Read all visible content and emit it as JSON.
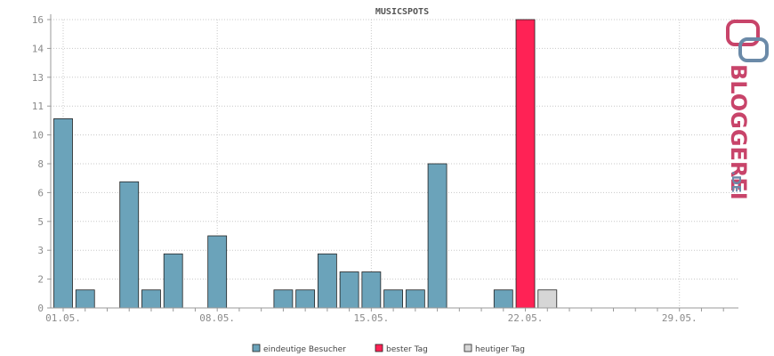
{
  "chart_data": {
    "type": "bar",
    "title": "MUSICSPOTS",
    "xlabel": "",
    "ylabel": "",
    "y_tick_labels": [
      "0",
      "2",
      "3",
      "5",
      "6",
      "8",
      "10",
      "11",
      "13",
      "14",
      "16"
    ],
    "x_tick_labels": [
      "01.05.",
      "08.05.",
      "15.05.",
      "22.05.",
      "29.05."
    ],
    "x_tick_days": [
      1,
      8,
      15,
      22,
      29
    ],
    "ylim": [
      0,
      16
    ],
    "grid": true,
    "legend_position": "bottom",
    "series": [
      {
        "name": "eindeutige Besucher",
        "color": "#6ba3ba",
        "points": [
          {
            "day": 1,
            "value": 10.5
          },
          {
            "day": 2,
            "value": 1
          },
          {
            "day": 4,
            "value": 7
          },
          {
            "day": 5,
            "value": 1
          },
          {
            "day": 6,
            "value": 3
          },
          {
            "day": 8,
            "value": 4
          },
          {
            "day": 11,
            "value": 1
          },
          {
            "day": 12,
            "value": 1
          },
          {
            "day": 13,
            "value": 3
          },
          {
            "day": 14,
            "value": 2
          },
          {
            "day": 15,
            "value": 2
          },
          {
            "day": 16,
            "value": 1
          },
          {
            "day": 17,
            "value": 1
          },
          {
            "day": 18,
            "value": 8
          },
          {
            "day": 21,
            "value": 1
          }
        ]
      },
      {
        "name": "bester Tag",
        "color": "#ff2255",
        "points": [
          {
            "day": 22,
            "value": 16
          }
        ]
      },
      {
        "name": "heutiger Tag",
        "color": "#d6d6d6",
        "points": [
          {
            "day": 23,
            "value": 1
          }
        ]
      }
    ]
  },
  "logo": {
    "text": "BLOGGEREI",
    "suffix": ".DE",
    "colors": {
      "main": "#c8446a",
      "accent": "#6b8aa8"
    }
  }
}
